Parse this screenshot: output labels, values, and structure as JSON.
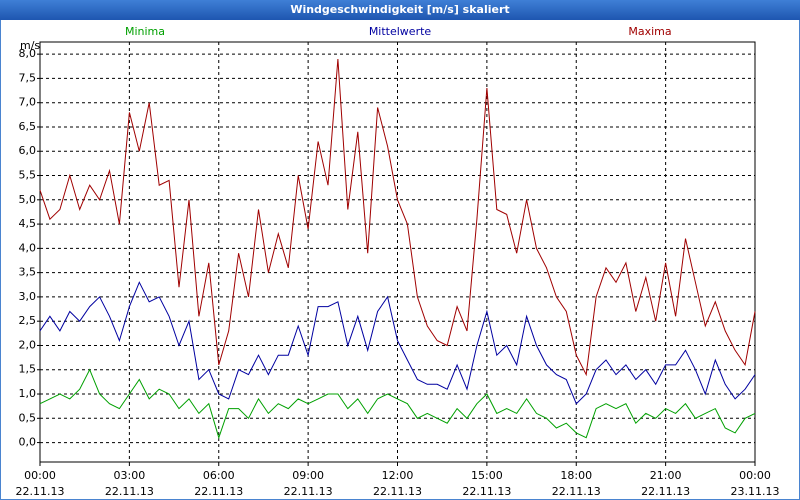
{
  "chart_data": {
    "type": "line",
    "title": "Windgeschwindigkeit [m/s] skaliert",
    "y_label": "m/s",
    "x": [
      0,
      20,
      40,
      60,
      80,
      100,
      120,
      140,
      160,
      180,
      200,
      220,
      240,
      260,
      280,
      300,
      320,
      340,
      360,
      380,
      400,
      420,
      440,
      460,
      480,
      500,
      520,
      540,
      560,
      580,
      600,
      620,
      640,
      660,
      680,
      700,
      720,
      740,
      760,
      780,
      800,
      820,
      840,
      860,
      880,
      900,
      920,
      940,
      960,
      980,
      1000,
      1020,
      1040,
      1060,
      1080,
      1100,
      1120,
      1140,
      1160,
      1180,
      1200,
      1220,
      1240,
      1260,
      1280,
      1300,
      1320,
      1340,
      1360,
      1380,
      1400,
      1420,
      1440
    ],
    "series": [
      {
        "name": "Minima",
        "color": "#00a000",
        "values": [
          0.8,
          0.9,
          1.0,
          0.9,
          1.1,
          1.5,
          1.0,
          0.8,
          0.7,
          1.0,
          1.3,
          0.9,
          1.1,
          1.0,
          0.7,
          0.9,
          0.6,
          0.8,
          0.1,
          0.7,
          0.7,
          0.5,
          0.9,
          0.6,
          0.8,
          0.7,
          0.9,
          0.8,
          0.9,
          1.0,
          1.0,
          0.7,
          0.9,
          0.6,
          0.9,
          1.0,
          0.9,
          0.8,
          0.5,
          0.6,
          0.5,
          0.4,
          0.7,
          0.5,
          0.8,
          1.0,
          0.6,
          0.7,
          0.6,
          0.9,
          0.6,
          0.5,
          0.3,
          0.4,
          0.2,
          0.1,
          0.7,
          0.8,
          0.7,
          0.8,
          0.4,
          0.6,
          0.5,
          0.7,
          0.6,
          0.8,
          0.5,
          0.6,
          0.7,
          0.3,
          0.2,
          0.5,
          0.6
        ]
      },
      {
        "name": "Mittelwerte",
        "color": "#0000a0",
        "values": [
          2.3,
          2.6,
          2.3,
          2.7,
          2.5,
          2.8,
          3.0,
          2.6,
          2.1,
          2.8,
          3.3,
          2.9,
          3.0,
          2.6,
          2.0,
          2.5,
          1.3,
          1.5,
          1.0,
          0.9,
          1.5,
          1.4,
          1.8,
          1.4,
          1.8,
          1.8,
          2.4,
          1.8,
          2.8,
          2.8,
          2.9,
          2.0,
          2.6,
          1.9,
          2.7,
          3.0,
          2.1,
          1.7,
          1.3,
          1.2,
          1.2,
          1.1,
          1.6,
          1.1,
          2.0,
          2.7,
          1.8,
          2.0,
          1.6,
          2.6,
          2.0,
          1.6,
          1.4,
          1.3,
          0.8,
          1.0,
          1.5,
          1.7,
          1.4,
          1.6,
          1.3,
          1.5,
          1.2,
          1.6,
          1.6,
          1.9,
          1.5,
          1.0,
          1.7,
          1.2,
          0.9,
          1.1,
          1.4
        ]
      },
      {
        "name": "Maxima",
        "color": "#a00000",
        "values": [
          5.2,
          4.6,
          4.8,
          5.5,
          4.8,
          5.3,
          5.0,
          5.6,
          4.5,
          6.8,
          6.0,
          7.0,
          5.3,
          5.4,
          3.2,
          5.0,
          2.6,
          3.7,
          1.6,
          2.3,
          3.9,
          3.0,
          4.8,
          3.5,
          4.3,
          3.6,
          5.5,
          4.4,
          6.2,
          5.3,
          7.9,
          4.8,
          6.4,
          3.9,
          6.9,
          6.1,
          5.0,
          4.5,
          3.0,
          2.4,
          2.1,
          2.0,
          2.8,
          2.3,
          4.6,
          7.3,
          4.8,
          4.7,
          3.9,
          5.0,
          4.0,
          3.6,
          3.0,
          2.7,
          1.8,
          1.4,
          3.0,
          3.6,
          3.3,
          3.7,
          2.7,
          3.4,
          2.5,
          3.7,
          2.6,
          4.2,
          3.3,
          2.4,
          2.9,
          2.3,
          1.9,
          1.6,
          2.7
        ]
      }
    ],
    "xlim": [
      0,
      1440
    ],
    "xticks": [
      {
        "value": 0,
        "label": "00:00 22.11.13"
      },
      {
        "value": 180,
        "label": "03:00 22.11.13"
      },
      {
        "value": 360,
        "label": "06:00 22.11.13"
      },
      {
        "value": 540,
        "label": "09:00 22.11.13"
      },
      {
        "value": 720,
        "label": "12:00 22.11.13"
      },
      {
        "value": 900,
        "label": "15:00 22.11.13"
      },
      {
        "value": 1080,
        "label": "18:00 22.11.13"
      },
      {
        "value": 1260,
        "label": "21:00 22.11.13"
      },
      {
        "value": 1440,
        "label": "00:00 23.11.13"
      }
    ],
    "ylim": [
      -0.4,
      8.25
    ],
    "yticks": [
      {
        "value": 0,
        "label": "0,0"
      },
      {
        "value": 0.5,
        "label": "0,5"
      },
      {
        "value": 1,
        "label": "1,0"
      },
      {
        "value": 1.5,
        "label": "1,5"
      },
      {
        "value": 2,
        "label": "2,0"
      },
      {
        "value": 2.5,
        "label": "2,5"
      },
      {
        "value": 3,
        "label": "3,0"
      },
      {
        "value": 3.5,
        "label": "3,5"
      },
      {
        "value": 4,
        "label": "4,0"
      },
      {
        "value": 4.5,
        "label": "4,5"
      },
      {
        "value": 5,
        "label": "5,0"
      },
      {
        "value": 5.5,
        "label": "5,5"
      },
      {
        "value": 6,
        "label": "6,0"
      },
      {
        "value": 6.5,
        "label": "6,5"
      },
      {
        "value": 7,
        "label": "7,0"
      },
      {
        "value": 7.5,
        "label": "7,5"
      },
      {
        "value": 8,
        "label": "8,0"
      }
    ],
    "grid": true
  }
}
